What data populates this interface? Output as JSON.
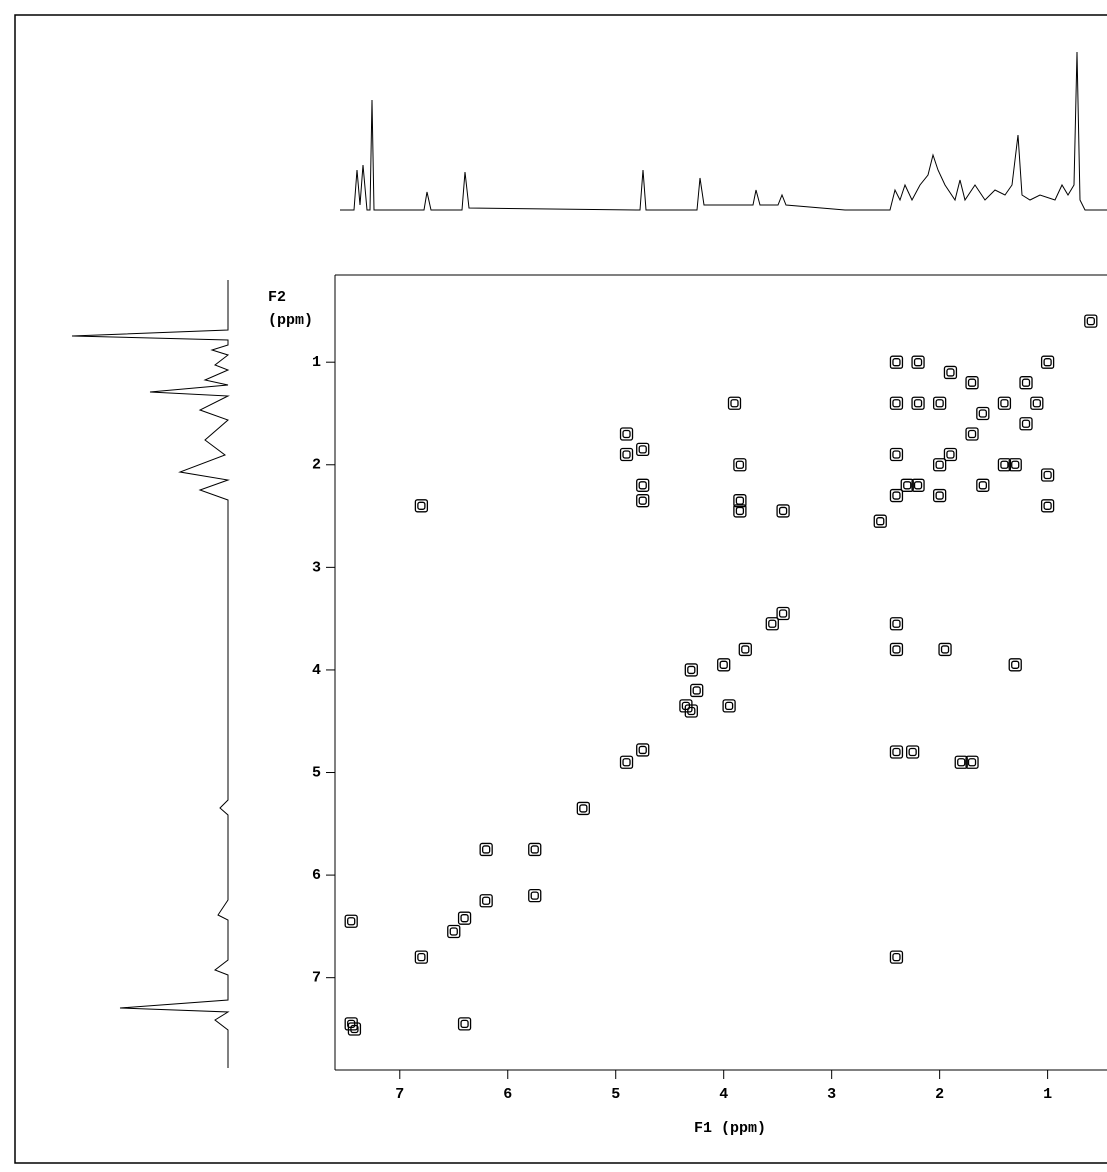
{
  "chart_data": {
    "type": "scatter",
    "x_label": "F1 (ppm)",
    "y_label_lines": [
      "F2",
      "(ppm)"
    ],
    "xlim": [
      7.6,
      0.45
    ],
    "xticks": [
      7,
      6,
      5,
      4,
      3,
      2,
      1
    ],
    "ylim": [
      0.15,
      7.9
    ],
    "yticks": [
      1,
      2,
      3,
      4,
      5,
      6,
      7
    ],
    "color": "#000000",
    "x": [
      7.45,
      7.42,
      6.8,
      6.4,
      6.5,
      6.2,
      5.3,
      4.9,
      4.75,
      4.35,
      4.25,
      4.0,
      3.8,
      3.55,
      3.45,
      2.55,
      2.2,
      2.0,
      1.7,
      1.4,
      1.0,
      0.6,
      1.9,
      1.2,
      7.45,
      6.4,
      6.8,
      6.2,
      5.75,
      5.75,
      4.9,
      4.9,
      4.75,
      4.75,
      4.75,
      3.9,
      3.85,
      3.85,
      3.85,
      3.45,
      4.3,
      4.3,
      3.95,
      2.4,
      2.4,
      2.4,
      2.25,
      1.7,
      1.8,
      1.95,
      1.3,
      2.4,
      2.4,
      2.2,
      2.4,
      2.2,
      2.0,
      1.6,
      1.2,
      2.4,
      2.3,
      2.4,
      2.0,
      1.6,
      1.3,
      1.0,
      1.0,
      1.4,
      1.7,
      1.9,
      1.1
    ],
    "values": [
      7.45,
      7.5,
      6.8,
      6.42,
      6.55,
      6.25,
      5.35,
      4.9,
      4.78,
      4.35,
      4.2,
      3.95,
      3.8,
      3.55,
      3.45,
      2.55,
      2.2,
      2.0,
      1.7,
      1.4,
      1.0,
      0.6,
      1.9,
      1.2,
      6.45,
      7.45,
      2.4,
      5.75,
      5.75,
      6.2,
      1.7,
      1.9,
      1.85,
      2.2,
      2.35,
      1.4,
      2.0,
      2.35,
      2.45,
      2.45,
      4.0,
      4.4,
      4.35,
      3.55,
      3.8,
      4.8,
      4.8,
      4.9,
      4.9,
      3.8,
      3.95,
      6.8,
      1.0,
      1.0,
      1.4,
      1.4,
      1.4,
      1.5,
      1.6,
      1.9,
      2.2,
      2.3,
      2.3,
      2.2,
      2.0,
      2.1,
      2.4,
      2.0,
      1.2,
      1.1,
      1.4
    ]
  }
}
